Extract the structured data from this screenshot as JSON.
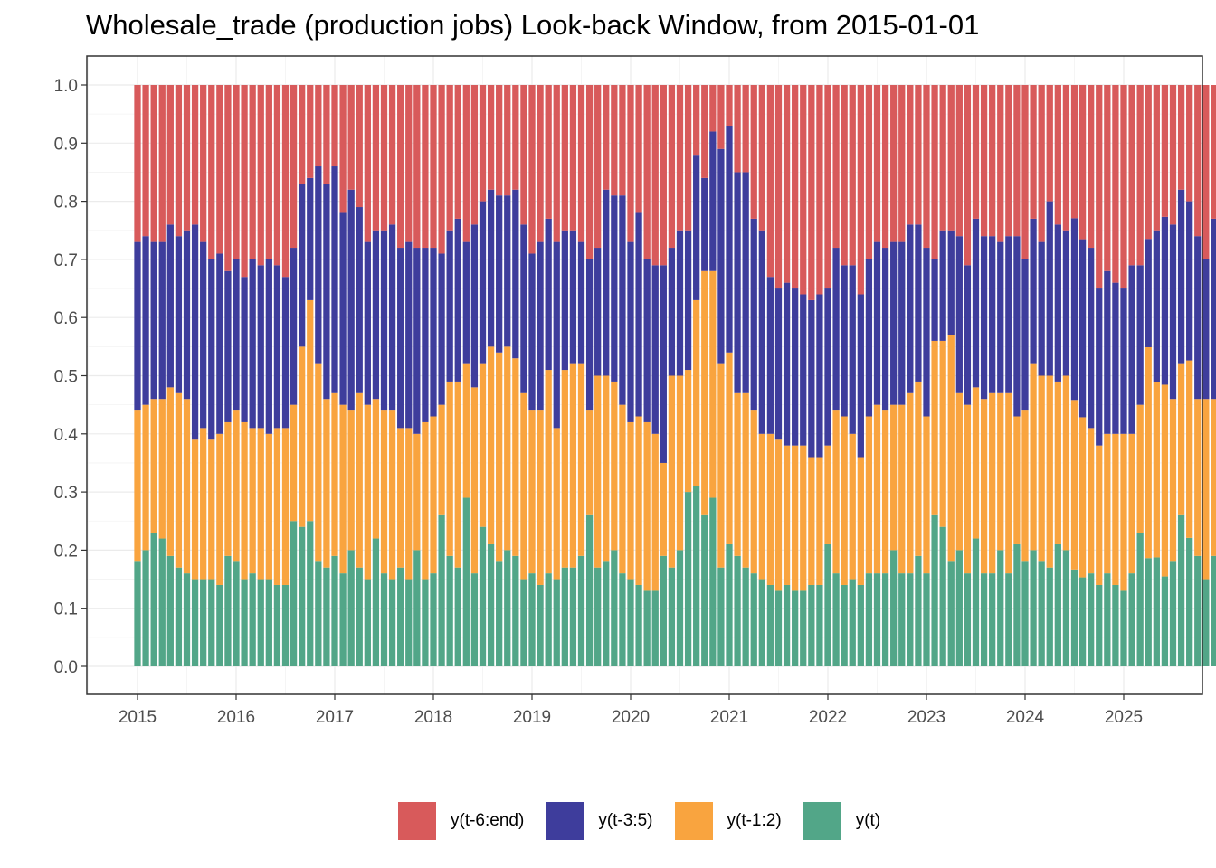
{
  "chart_data": {
    "type": "bar",
    "stacked": true,
    "title": "Wholesale_trade (production jobs) Look-back Window, from 2015-01-01",
    "xlabel": "",
    "ylabel": "",
    "x_start": "2015-01",
    "x_frequency": "monthly",
    "x_ticks": [
      "2015",
      "2016",
      "2017",
      "2018",
      "2019",
      "2020",
      "2021",
      "2022",
      "2023",
      "2024",
      "2025"
    ],
    "y_ticks": [
      "0.0",
      "0.1",
      "0.2",
      "0.3",
      "0.4",
      "0.5",
      "0.6",
      "0.7",
      "0.8",
      "0.9",
      "1.0"
    ],
    "ylim": [
      0,
      1
    ],
    "grid": true,
    "legend_position": "bottom",
    "series": [
      {
        "name": "y(t)",
        "color": "#52A688",
        "values": [
          0.18,
          0.2,
          0.23,
          0.22,
          0.19,
          0.17,
          0.16,
          0.15,
          0.15,
          0.15,
          0.14,
          0.19,
          0.18,
          0.15,
          0.16,
          0.15,
          0.15,
          0.14,
          0.14,
          0.25,
          0.24,
          0.25,
          0.18,
          0.17,
          0.19,
          0.16,
          0.2,
          0.17,
          0.15,
          0.22,
          0.16,
          0.15,
          0.17,
          0.15,
          0.2,
          0.15,
          0.16,
          0.26,
          0.19,
          0.17,
          0.29,
          0.16,
          0.24,
          0.21,
          0.18,
          0.2,
          0.19,
          0.15,
          0.16,
          0.14,
          0.16,
          0.15,
          0.17,
          0.17,
          0.19,
          0.26,
          0.17,
          0.18,
          0.2,
          0.16,
          0.15,
          0.14,
          0.13,
          0.13,
          0.19,
          0.17,
          0.2,
          0.3,
          0.31,
          0.26,
          0.29,
          0.17,
          0.21,
          0.19,
          0.17,
          0.16,
          0.15,
          0.14,
          0.13,
          0.14,
          0.13,
          0.13,
          0.14,
          0.14,
          0.21,
          0.16,
          0.14,
          0.15,
          0.14,
          0.16,
          0.16,
          0.16,
          0.2,
          0.16,
          0.16,
          0.19,
          0.16,
          0.26,
          0.24,
          0.18,
          0.2,
          0.16,
          0.22,
          0.16,
          0.16,
          0.2,
          0.16,
          0.21,
          0.18,
          0.2,
          0.18,
          0.17,
          0.21,
          0.2,
          0.16,
          0.15,
          0.16,
          0.14,
          0.16,
          0.14,
          0.13,
          0.16,
          0.23,
          0.19,
          0.18,
          0.15,
          0.18,
          0.26,
          0.21,
          0.19,
          0.15,
          0.19,
          0.17
        ]
      },
      {
        "name": "y(t-1:2)",
        "color": "#F9A43F",
        "values": [
          0.26,
          0.25,
          0.23,
          0.24,
          0.29,
          0.3,
          0.3,
          0.24,
          0.26,
          0.24,
          0.26,
          0.23,
          0.26,
          0.27,
          0.25,
          0.26,
          0.25,
          0.27,
          0.27,
          0.2,
          0.31,
          0.38,
          0.34,
          0.29,
          0.28,
          0.29,
          0.24,
          0.3,
          0.3,
          0.24,
          0.28,
          0.29,
          0.24,
          0.26,
          0.2,
          0.27,
          0.27,
          0.19,
          0.3,
          0.32,
          0.23,
          0.32,
          0.28,
          0.34,
          0.36,
          0.35,
          0.34,
          0.32,
          0.28,
          0.3,
          0.35,
          0.26,
          0.34,
          0.35,
          0.33,
          0.18,
          0.33,
          0.32,
          0.29,
          0.29,
          0.27,
          0.29,
          0.29,
          0.27,
          0.16,
          0.33,
          0.3,
          0.21,
          0.32,
          0.42,
          0.39,
          0.35,
          0.33,
          0.28,
          0.3,
          0.28,
          0.25,
          0.26,
          0.26,
          0.24,
          0.25,
          0.25,
          0.22,
          0.22,
          0.17,
          0.28,
          0.29,
          0.25,
          0.22,
          0.27,
          0.29,
          0.28,
          0.25,
          0.29,
          0.31,
          0.3,
          0.27,
          0.3,
          0.32,
          0.39,
          0.27,
          0.29,
          0.26,
          0.3,
          0.31,
          0.27,
          0.31,
          0.22,
          0.26,
          0.32,
          0.32,
          0.33,
          0.28,
          0.3,
          0.28,
          0.27,
          0.25,
          0.24,
          0.24,
          0.26,
          0.27,
          0.24,
          0.22,
          0.37,
          0.29,
          0.32,
          0.28,
          0.26,
          0.29,
          0.27,
          0.31,
          0.27,
          0.3
        ]
      },
      {
        "name": "y(t-3:5)",
        "color": "#3E3D9C",
        "values": [
          0.29,
          0.29,
          0.27,
          0.27,
          0.28,
          0.27,
          0.29,
          0.37,
          0.32,
          0.31,
          0.31,
          0.26,
          0.26,
          0.25,
          0.29,
          0.28,
          0.3,
          0.28,
          0.26,
          0.27,
          0.28,
          0.21,
          0.34,
          0.37,
          0.39,
          0.33,
          0.38,
          0.32,
          0.28,
          0.29,
          0.31,
          0.32,
          0.31,
          0.32,
          0.32,
          0.3,
          0.29,
          0.26,
          0.26,
          0.28,
          0.21,
          0.28,
          0.28,
          0.27,
          0.27,
          0.26,
          0.29,
          0.29,
          0.27,
          0.29,
          0.26,
          0.32,
          0.24,
          0.23,
          0.21,
          0.26,
          0.22,
          0.32,
          0.32,
          0.36,
          0.31,
          0.35,
          0.28,
          0.29,
          0.34,
          0.22,
          0.25,
          0.24,
          0.25,
          0.16,
          0.24,
          0.37,
          0.39,
          0.38,
          0.38,
          0.33,
          0.35,
          0.27,
          0.26,
          0.28,
          0.27,
          0.26,
          0.27,
          0.28,
          0.27,
          0.28,
          0.26,
          0.29,
          0.28,
          0.27,
          0.28,
          0.28,
          0.28,
          0.28,
          0.29,
          0.27,
          0.29,
          0.14,
          0.19,
          0.18,
          0.27,
          0.24,
          0.29,
          0.28,
          0.27,
          0.26,
          0.27,
          0.31,
          0.26,
          0.25,
          0.23,
          0.3,
          0.27,
          0.25,
          0.3,
          0.3,
          0.31,
          0.27,
          0.28,
          0.26,
          0.25,
          0.29,
          0.24,
          0.19,
          0.25,
          0.28,
          0.3,
          0.3,
          0.26,
          0.28,
          0.24,
          0.31,
          0.33
        ]
      },
      {
        "name": "y(t-6:end)",
        "color": "#D85A5B",
        "values": [
          0.27,
          0.26,
          0.27,
          0.27,
          0.24,
          0.26,
          0.25,
          0.24,
          0.27,
          0.3,
          0.29,
          0.32,
          0.3,
          0.33,
          0.3,
          0.31,
          0.3,
          0.31,
          0.33,
          0.28,
          0.17,
          0.16,
          0.14,
          0.17,
          0.14,
          0.22,
          0.18,
          0.21,
          0.27,
          0.25,
          0.25,
          0.24,
          0.28,
          0.27,
          0.28,
          0.28,
          0.28,
          0.29,
          0.25,
          0.23,
          0.27,
          0.24,
          0.2,
          0.18,
          0.19,
          0.19,
          0.18,
          0.24,
          0.29,
          0.27,
          0.23,
          0.27,
          0.25,
          0.25,
          0.27,
          0.3,
          0.28,
          0.18,
          0.19,
          0.19,
          0.27,
          0.22,
          0.3,
          0.31,
          0.31,
          0.28,
          0.25,
          0.25,
          0.12,
          0.16,
          0.08,
          0.11,
          0.07,
          0.15,
          0.15,
          0.23,
          0.25,
          0.33,
          0.35,
          0.34,
          0.35,
          0.36,
          0.37,
          0.36,
          0.35,
          0.28,
          0.31,
          0.31,
          0.36,
          0.3,
          0.27,
          0.28,
          0.27,
          0.27,
          0.24,
          0.24,
          0.28,
          0.3,
          0.25,
          0.25,
          0.26,
          0.31,
          0.23,
          0.26,
          0.26,
          0.27,
          0.26,
          0.26,
          0.3,
          0.23,
          0.27,
          0.2,
          0.24,
          0.25,
          0.22,
          0.26,
          0.28,
          0.35,
          0.32,
          0.34,
          0.35,
          0.31,
          0.31,
          0.27,
          0.24,
          0.22,
          0.24,
          0.18,
          0.19,
          0.26,
          0.3,
          0.23,
          0.2
        ]
      }
    ]
  }
}
